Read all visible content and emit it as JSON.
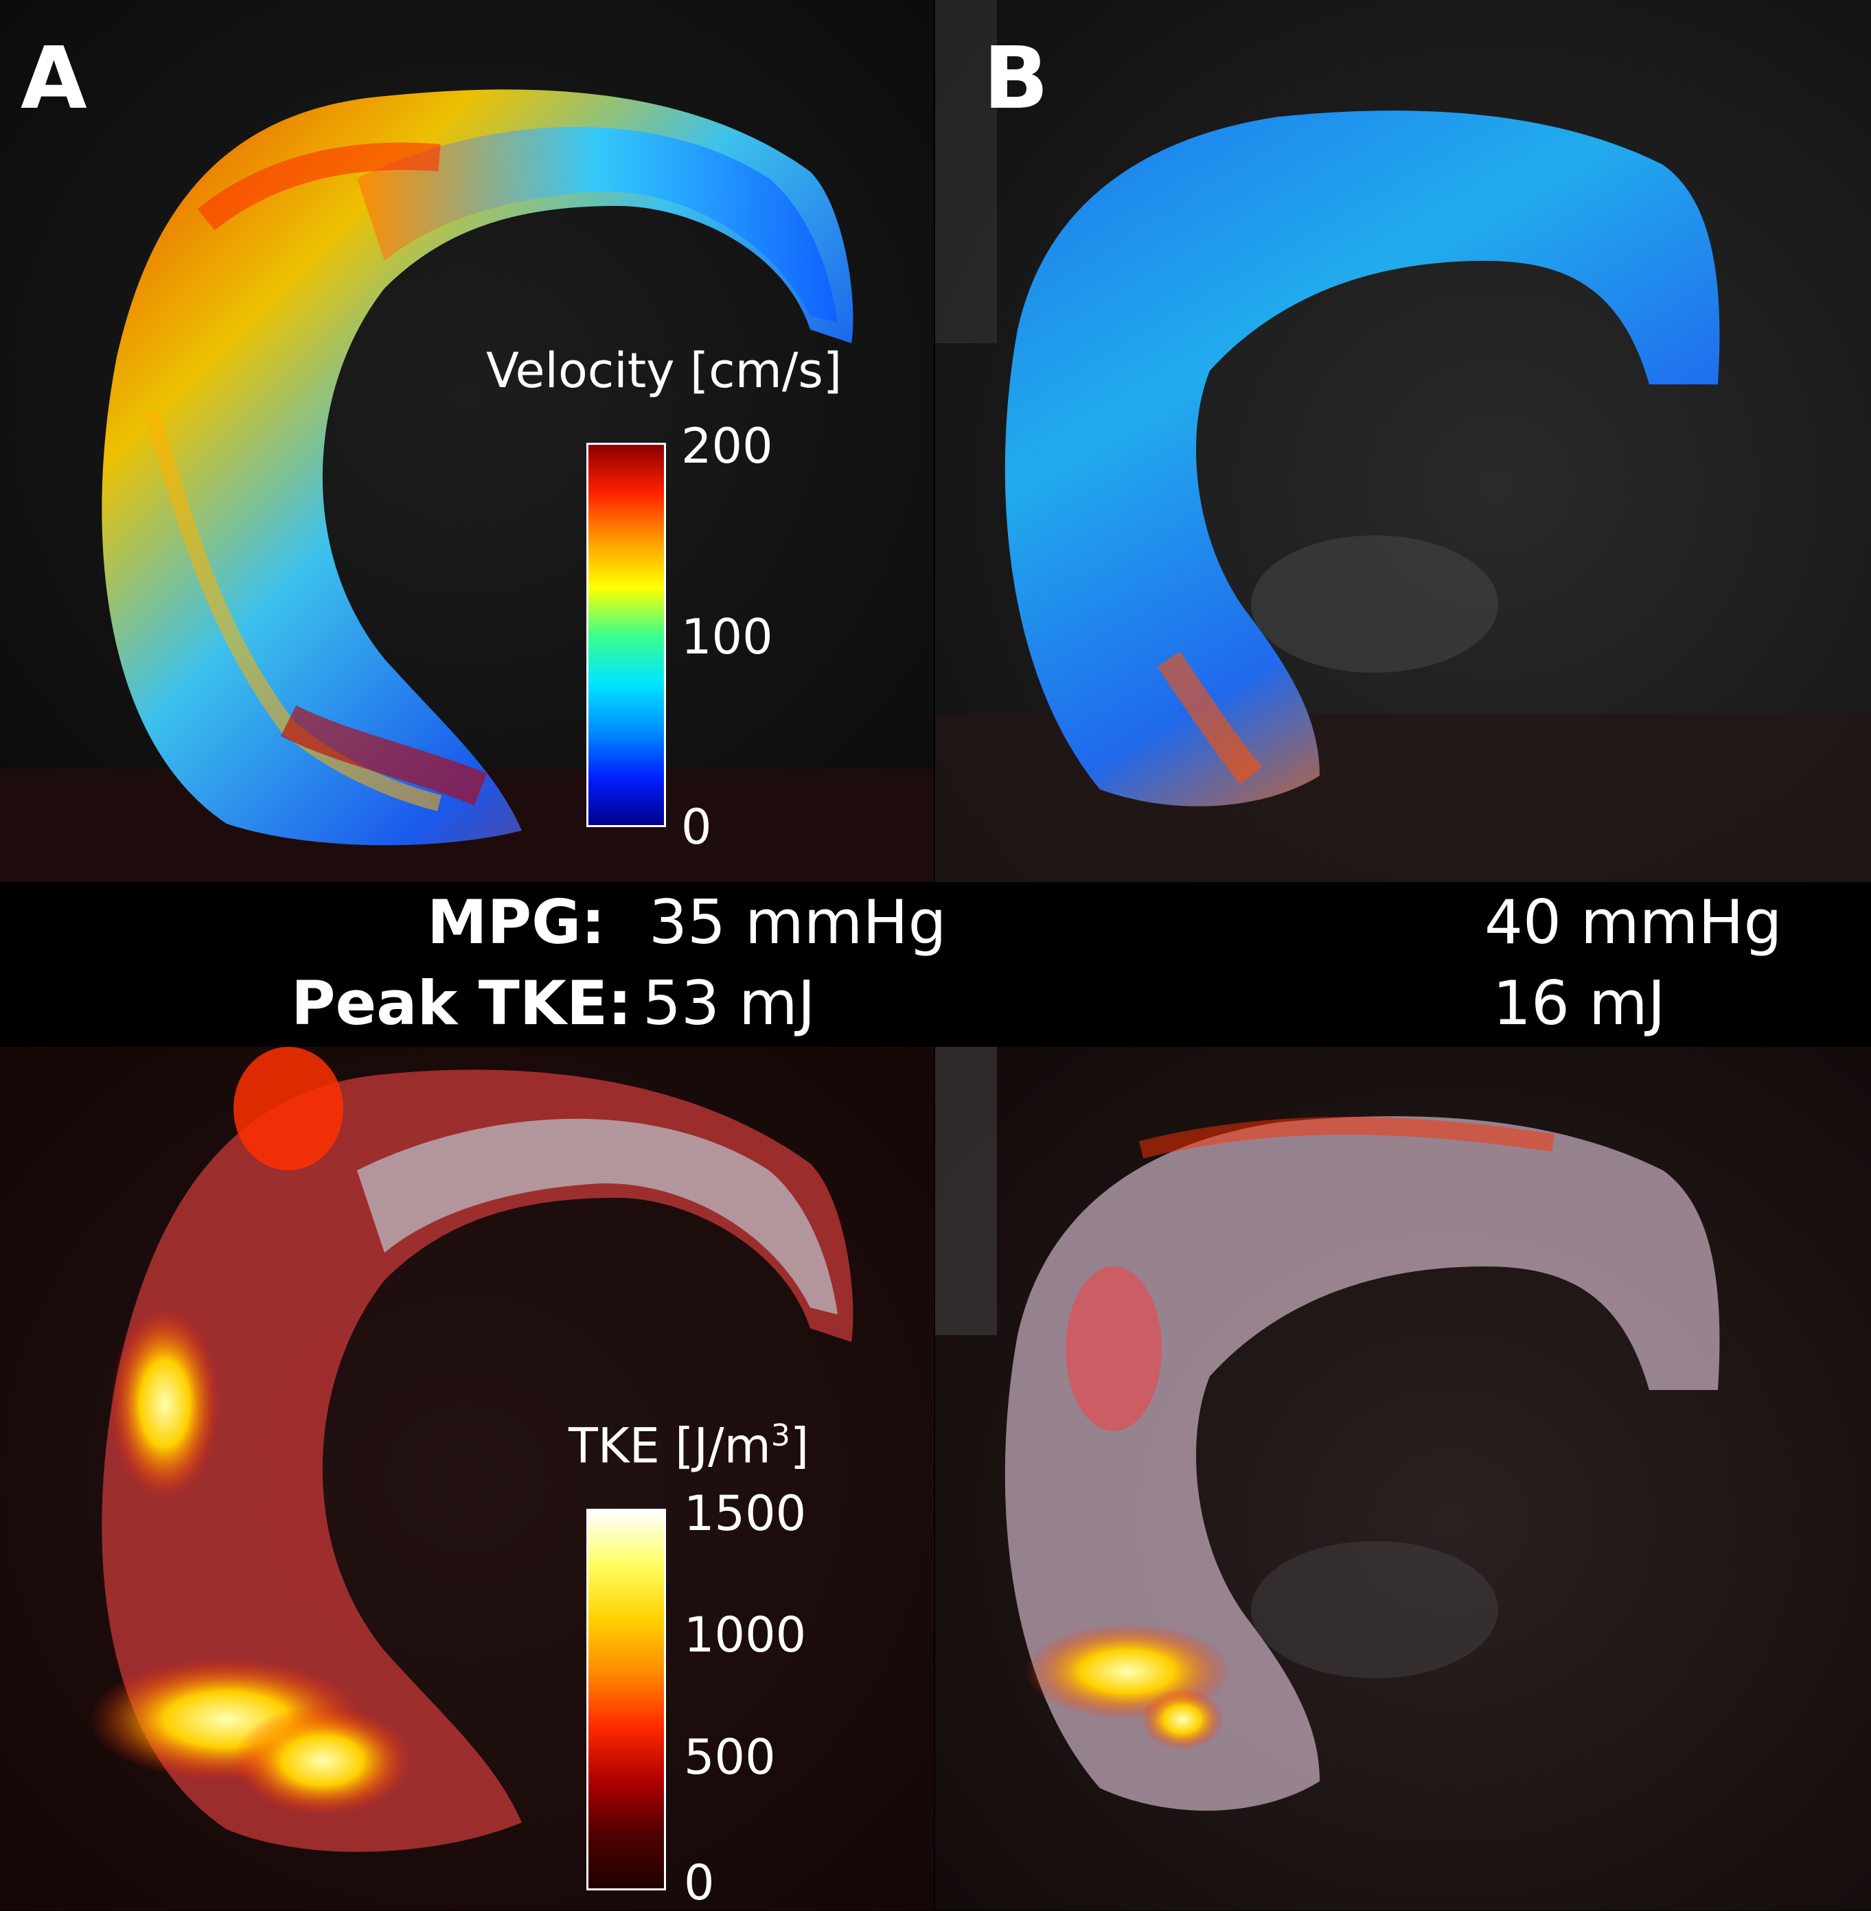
{
  "panels": {
    "a_label": "A",
    "b_label": "B"
  },
  "velocity_bar": {
    "title": "Velocity [cm/s]",
    "ticks": [
      "200",
      "100",
      "0"
    ],
    "colors": [
      "#8b0000",
      "#ff2000",
      "#ff9a00",
      "#ffff00",
      "#3cff8a",
      "#00e6ff",
      "#0090ff",
      "#0020ff",
      "#00008b"
    ]
  },
  "tke_bar": {
    "title_main": "TKE [J/m",
    "title_sup": "3",
    "title_end": "]",
    "ticks": [
      "1500",
      "1000",
      "500",
      "0"
    ],
    "colors": [
      "#ffffff",
      "#ffff60",
      "#ffd200",
      "#ff8a00",
      "#ff2a00",
      "#b00000",
      "#500000",
      "#200000"
    ]
  },
  "stats": {
    "mpg_label": "MPG:",
    "mpg_a": "35 mmHg",
    "mpg_b": "40 mmHg",
    "tke_label": "Peak TKE:",
    "tke_a": "53 mJ",
    "tke_b": "16 mJ"
  }
}
